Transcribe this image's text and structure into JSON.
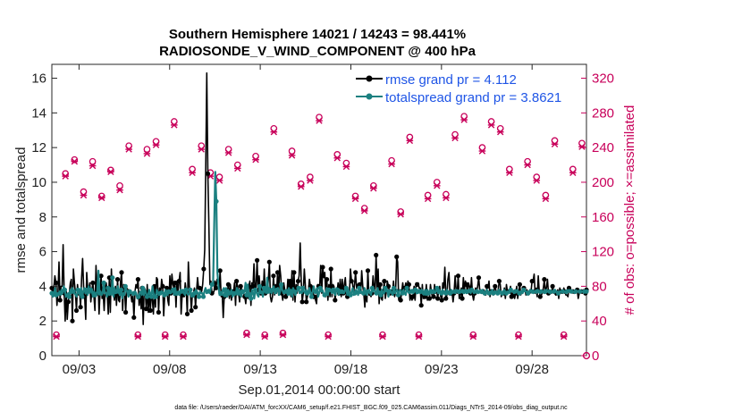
{
  "chart_data": {
    "type": "line",
    "title_line1": "Southern Hemisphere 14021 / 14243 = 98.441%",
    "title_line2": "RADIOSONDE_V_WIND_COMPONENT @ 400 hPa",
    "xlabel": "Sep.01,2014 00:00:00 start",
    "ylabel": "rmse and totalspread",
    "ylabel_right": "# of obs: o=possible; ×=assimilated",
    "footnote": "data file: /Users/raeder/DAI/ATM_forcXX/CAM6_setup/f.e21.FHIST_BGC.f09_025.CAM6assim.011/Diags_NTrS_2014-09/obs_diag_output.nc",
    "xlim": [
      1.5,
      31.0
    ],
    "ylim": [
      0,
      16.8
    ],
    "ylim_right": [
      0,
      336
    ],
    "x_ticks": [
      3,
      8,
      13,
      18,
      23,
      28
    ],
    "x_tick_labels": [
      "09/03",
      "09/08",
      "09/13",
      "09/18",
      "09/23",
      "09/28"
    ],
    "y_ticks": [
      0,
      2,
      4,
      6,
      8,
      10,
      12,
      14,
      16
    ],
    "y_tick_labels": [
      "0",
      "2",
      "4",
      "6",
      "8",
      "10",
      "12",
      "14",
      "16"
    ],
    "y_ticks_right": [
      0,
      40,
      80,
      120,
      160,
      200,
      240,
      280,
      320
    ],
    "y_tick_labels_right": [
      "0",
      "40",
      "80",
      "120",
      "160",
      "200",
      "240",
      "280",
      "320"
    ],
    "colors": {
      "rmse": "#000000",
      "totalspread": "#1b8080",
      "obs": "#c8005a",
      "legend_text": "#1f55e6"
    },
    "series": [
      {
        "name": "rmse grand pr = 4.112",
        "values": [
          3.9,
          3.5,
          4.0,
          4.6,
          4.2,
          2.9,
          3.7,
          5.4,
          3.2,
          4.0,
          4.0,
          6.4,
          3.6,
          2.0,
          3.7,
          2.1,
          3.1,
          3.6,
          4.2,
          4.4,
          2.0,
          5.0,
          4.2,
          3.6,
          2.6,
          4.1,
          3.5,
          3.7,
          2.8,
          4.5,
          5.6,
          3.9,
          3.4,
          2.1,
          4.8,
          3.8,
          3.8,
          4.2,
          3.1,
          3.8,
          4.2,
          3.4,
          2.6,
          5.2,
          3.6,
          4.3,
          2.4,
          3.6,
          4.6,
          3.3,
          3.6,
          2.6,
          3.8,
          4.2,
          3.5,
          2.4,
          4.5,
          2.5,
          5.0,
          3.6,
          3.7,
          3.2,
          4.0,
          2.9,
          4.4,
          3.2,
          3.1,
          4.3,
          4.8,
          2.6,
          4.1,
          3.7,
          2.5,
          3.9,
          3.8,
          3.8,
          3.6,
          3.5,
          3.1,
          3.5,
          2.2,
          3.7,
          4.1,
          3.9,
          4.4,
          2.9,
          3.7,
          2.7,
          3.9,
          1.8,
          3.9,
          3.8,
          2.7,
          4.1,
          2.5,
          3.8,
          2.6,
          3.6,
          3.2,
          2.4,
          4.0,
          2.8,
          4.5,
          4.4,
          2.5,
          3.9,
          3.6,
          4.4,
          4.0,
          2.3,
          3.5,
          3.7,
          3.9,
          3.2,
          2.9,
          4.6,
          3.6,
          4.7,
          4.1,
          3.9,
          4.2,
          2.8,
          4.3,
          3.7,
          4.3,
          4.8,
          2.4,
          3.5,
          3.5,
          3.4,
          4.2,
          3.7,
          2.4,
          5.4,
          4.0,
          3.6,
          2.6,
          3.6,
          3.6,
          3.9,
          2.8,
          3.7,
          4.5,
          3.9,
          3.9,
          3.9,
          3.7,
          4.1,
          5.0,
          6.1,
          11.1,
          16.3,
          10.5,
          7.7,
          4.1,
          4.3,
          3.6,
          3.6,
          3.7,
          4.3,
          3.9,
          4.4,
          4.4,
          3.7,
          4.9,
          3.4,
          3.6,
          2.2,
          3.4,
          3.6,
          3.4,
          3.6,
          4.1,
          3.3,
          4.1,
          3.2,
          3.7,
          3.6,
          4.2,
          2.9,
          4.3,
          4.0,
          3.6,
          3.1,
          4.0,
          3.8,
          3.8,
          3.6,
          3.4,
          3.0,
          3.8,
          3.3,
          4.0,
          4.3,
          2.9,
          4.2,
          4.0,
          5.3,
          3.6,
          4.0,
          5.5,
          3.7,
          4.6,
          3.9,
          3.6,
          4.3,
          3.6,
          5.0,
          3.6,
          3.7,
          3.6,
          4.4,
          5.4,
          3.4,
          3.1,
          3.4,
          4.6,
          3.5,
          4.1,
          3.6,
          4.8,
          3.5,
          5.2,
          4.6,
          3.6,
          3.2,
          4.2,
          3.8,
          3.4,
          3.5,
          4.4,
          3.8,
          4.3,
          3.4,
          4.9,
          3.2,
          4.8,
          3.1,
          4.1,
          3.6,
          4.3,
          4.6,
          6.5,
          4.4,
          3.1,
          3.6,
          5.0,
          4.1,
          3.1,
          3.4,
          3.6,
          4.4,
          4.0,
          3.7,
          4.0,
          3.3,
          3.4,
          3.2,
          3.0,
          4.1,
          4.0,
          4.0,
          5.2,
          3.6,
          5.1,
          4.5,
          4.8,
          3.4,
          4.4,
          3.2,
          4.1,
          3.4,
          5.0,
          3.4,
          4.1,
          4.0,
          3.2,
          3.7,
          3.7,
          4.2,
          3.6,
          4.4,
          3.4,
          4.4,
          3.6,
          4.1,
          4.5,
          3.5,
          3.4,
          3.6,
          3.6,
          5.0,
          4.3,
          4.2,
          3.6,
          4.1,
          4.8,
          3.9,
          4.1,
          3.8,
          4.1,
          3.6,
          4.9,
          4.0,
          3.6,
          2.8,
          3.7,
          3.1,
          4.9,
          3.5,
          3.5,
          3.4,
          3.6,
          4.6,
          4.0,
          3.8,
          5.8,
          3.8,
          5.0,
          3.0,
          4.1,
          3.3,
          3.2,
          3.8,
          4.3,
          3.3,
          3.7,
          4.3,
          4.0,
          3.7,
          3.5,
          3.6,
          3.7,
          4.3,
          3.4,
          3.7,
          5.7,
          5.4,
          3.2,
          3.4,
          3.2,
          3.7,
          4.2,
          3.6,
          3.9,
          4.2,
          3.7,
          4.3,
          4.1,
          3.2,
          3.5,
          3.2,
          3.4,
          4.0,
          3.2,
          4.2,
          4.1,
          4.2,
          3.9,
          3.9,
          2.9,
          4.1,
          3.3,
          3.3,
          3.4,
          4.1,
          3.2,
          3.3,
          3.3,
          4.1,
          3.6,
          3.4,
          3.4,
          4.1,
          3.6,
          3.9,
          3.3,
          3.8,
          4.0,
          3.4,
          3.2,
          4.2,
          3.9,
          5.1,
          3.3,
          3.5,
          4.4,
          4.8,
          3.6,
          3.5,
          3.7,
          3.1,
          3.6,
          4.6,
          3.8,
          3.6,
          4.6,
          3.3,
          3.4,
          3.9,
          3.3,
          4.5,
          3.8,
          4.3,
          4.1,
          3.6,
          4.2,
          4.0,
          3.6,
          4.5,
          3.5,
          3.2,
          3.6,
          3.9,
          3.7,
          4.0,
          4.5,
          3.8,
          3.8,
          3.6,
          3.7,
          3.8,
          3.5,
          3.5,
          4.0,
          3.9,
          4.3,
          3.4,
          3.7,
          3.7,
          3.5,
          3.8,
          4.0,
          3.7,
          3.6,
          3.8,
          4.3,
          4.1,
          3.4,
          3.6,
          3.6,
          3.9,
          3.3,
          4.1,
          3.7,
          3.7,
          3.7,
          4.0,
          3.4,
          3.6,
          3.5,
          3.3,
          3.6,
          4.0,
          3.3,
          3.7,
          4.1,
          3.5,
          3.7,
          3.8,
          3.9,
          3.9,
          3.5,
          3.8,
          3.6,
          3.6,
          3.6,
          3.7,
          4.3,
          4.3,
          4.7,
          3.6,
          3.8,
          3.4,
          4.6,
          3.7,
          3.4,
          3.5,
          3.6,
          3.9,
          4.4,
          3.6,
          3.9,
          4.4,
          3.6,
          3.6,
          3.7,
          3.6,
          4.0,
          3.6,
          3.6,
          3.5,
          3.6,
          3.8,
          3.3,
          3.9,
          3.7,
          3.6,
          3.6,
          3.9,
          3.7,
          3.5,
          3.5,
          3.4,
          3.9,
          3.8,
          3.7,
          3.8,
          3.7,
          3.6,
          3.6,
          3.8,
          3.8,
          3.3,
          3.6,
          3.7,
          3.7,
          3.6,
          3.8,
          3.7,
          3.6,
          3.8
        ]
      },
      {
        "name": "totalspread grand pr = 3.8621",
        "values": [
          3.6,
          3.4,
          3.5,
          3.9,
          3.5,
          3.6,
          3.5,
          3.7,
          3.6,
          3.8,
          3.6,
          4.0,
          3.8,
          3.4,
          3.5,
          3.6,
          3.4,
          3.8,
          3.6,
          3.9,
          3.7,
          3.6,
          3.5,
          3.4,
          3.8,
          3.6,
          3.5,
          3.9,
          3.4,
          3.7,
          3.9,
          3.6,
          3.8,
          3.5,
          4.0,
          3.6,
          3.8,
          3.7,
          3.4,
          3.7,
          3.5,
          3.6,
          3.7,
          4.9,
          3.6,
          3.7,
          3.5,
          3.6,
          4.2,
          3.6,
          3.6,
          3.4,
          3.9,
          3.5,
          3.9,
          3.5,
          4.5,
          3.4,
          3.9,
          3.6,
          3.7,
          4.0,
          3.6,
          3.5,
          3.8,
          3.3,
          3.6,
          3.5,
          4.0,
          3.8,
          3.6,
          3.4,
          3.7,
          3.6,
          3.6,
          3.5,
          3.6,
          3.7,
          3.6,
          3.3,
          3.4,
          3.6,
          3.7,
          3.5,
          3.9,
          3.5,
          3.8,
          3.6,
          3.4,
          3.5,
          3.8,
          3.5,
          3.4,
          4.0,
          3.6,
          3.3,
          3.4,
          3.8,
          3.6,
          3.5,
          3.6,
          3.7,
          3.7,
          3.6,
          3.5,
          3.8,
          3.7,
          3.5,
          3.7,
          3.6,
          3.6,
          3.7,
          3.8,
          3.5,
          3.9,
          3.5,
          3.6,
          3.7,
          3.5,
          3.8,
          3.7,
          3.8,
          3.6,
          3.5,
          3.8,
          3.6,
          3.5,
          3.6,
          3.8,
          3.4,
          3.6,
          3.4,
          3.6,
          3.8,
          3.7,
          3.6,
          3.4,
          3.7,
          3.6,
          3.6,
          3.4,
          3.7,
          3.9,
          3.6,
          3.7,
          3.8,
          3.6,
          3.9,
          4.1,
          4.2,
          7.5,
          10.6,
          8.9,
          4.8,
          4.0,
          3.5,
          3.6,
          3.5,
          3.8,
          3.9,
          3.5,
          3.9,
          3.4,
          3.8,
          3.6,
          3.6,
          3.8,
          3.4,
          3.6,
          3.5,
          3.6,
          3.9,
          3.6,
          3.8,
          3.5,
          3.4,
          3.7,
          3.6,
          3.7,
          4.2,
          3.5,
          4.1,
          3.4,
          3.6,
          3.3,
          3.8,
          3.6,
          3.3,
          3.8,
          3.7,
          3.5,
          3.4,
          4.0,
          3.6,
          3.7,
          3.4,
          3.9,
          3.7,
          3.6,
          4.5,
          3.7,
          3.9,
          3.7,
          3.6,
          3.8,
          4.0,
          3.6,
          3.6,
          3.8,
          3.9,
          3.5,
          3.7,
          4.1,
          3.8,
          3.6,
          3.6,
          3.7,
          3.8,
          3.5,
          3.9,
          3.6,
          3.8,
          3.4,
          3.9,
          3.7,
          3.5,
          3.7,
          3.8,
          3.9,
          3.6,
          3.7,
          3.6,
          3.9,
          3.7,
          3.6,
          3.8,
          3.6,
          3.7,
          3.9,
          3.6,
          3.4,
          3.7,
          4.0,
          3.6,
          3.7,
          3.9,
          3.4,
          3.6,
          3.9,
          3.7,
          3.8,
          3.6,
          3.5,
          3.6,
          3.9,
          3.5,
          3.8,
          3.8,
          3.7,
          3.6,
          3.8,
          3.6,
          3.5,
          3.9,
          3.8,
          3.5,
          3.8,
          3.6,
          3.7,
          3.6,
          3.6,
          3.8,
          3.9,
          3.5,
          3.8,
          3.6,
          3.5,
          3.7,
          3.9,
          3.5,
          3.6,
          3.8,
          3.7,
          3.5,
          3.9,
          3.6,
          3.7,
          3.6,
          3.6,
          3.9,
          3.7,
          3.5,
          3.7,
          3.8,
          3.6,
          3.5,
          3.9,
          3.7,
          3.8,
          3.7,
          3.6,
          3.9,
          3.6,
          3.7,
          3.5,
          3.8,
          3.6,
          3.6,
          3.9,
          3.7,
          3.8,
          3.4,
          3.7,
          3.8,
          3.6,
          3.5,
          3.9,
          3.6,
          3.7,
          3.8,
          3.5,
          3.7,
          3.8,
          3.7,
          3.6,
          3.8,
          3.6,
          3.5,
          3.9,
          3.7,
          3.6,
          3.7,
          3.7,
          3.8,
          3.6,
          3.7,
          3.8,
          3.6,
          3.6,
          3.8,
          3.7,
          3.6,
          3.8,
          3.7,
          3.6,
          3.8,
          3.5,
          3.8,
          3.6,
          3.7,
          3.8,
          3.6,
          3.7,
          3.8,
          3.6,
          3.7,
          3.9,
          3.6,
          3.8,
          3.7,
          3.6,
          3.8,
          3.7,
          3.7,
          3.6,
          3.8,
          3.7,
          3.7,
          3.6,
          3.8,
          3.6,
          3.7,
          3.7,
          3.6,
          3.8,
          3.7,
          3.7,
          3.6,
          3.7,
          3.8,
          3.7,
          3.6,
          3.8,
          3.6,
          3.7,
          3.8,
          3.7,
          3.6,
          3.8,
          3.7,
          3.6,
          3.7,
          3.7,
          3.8,
          3.6,
          3.7,
          3.7,
          3.6,
          3.8,
          3.7,
          3.6,
          3.7,
          3.8,
          3.7,
          3.6,
          3.7,
          3.7,
          3.8,
          3.6,
          3.7,
          3.7,
          3.7,
          3.6,
          3.8,
          3.7,
          3.7,
          3.6,
          3.7,
          3.8,
          3.7,
          3.6,
          3.7,
          3.7,
          3.6,
          3.8,
          3.7,
          3.7,
          3.6,
          3.7,
          3.7,
          3.8,
          3.7,
          3.6,
          3.7,
          3.7,
          3.6,
          3.8,
          3.7,
          3.7,
          3.7,
          3.6,
          3.7,
          3.8,
          3.7,
          3.7,
          3.6,
          3.7,
          3.7,
          3.7,
          3.8,
          3.7,
          3.6,
          3.7,
          3.7,
          3.7,
          3.6,
          3.7,
          3.8,
          3.7,
          3.7,
          3.7,
          3.6,
          3.7,
          3.7,
          3.7,
          3.8,
          3.7,
          3.7,
          3.6,
          3.7,
          3.7,
          3.7,
          3.7,
          3.7,
          3.7,
          3.6,
          3.7,
          3.7,
          3.8,
          3.7,
          3.7,
          3.7,
          3.7,
          3.6,
          3.7,
          3.7,
          3.7,
          3.7,
          3.7,
          3.7,
          3.7,
          3.7,
          3.7,
          3.7,
          3.7
        ]
      }
    ],
    "rmse_x": [],
    "obs": {
      "times": [
        1.75,
        2.25,
        2.75,
        3.25,
        3.75,
        4.25,
        4.75,
        5.25,
        5.75,
        6.25,
        6.75,
        7.25,
        7.75,
        8.25,
        8.75,
        9.25,
        9.75,
        10.25,
        10.75,
        11.25,
        11.75,
        12.25,
        12.75,
        13.25,
        13.75,
        14.25,
        14.75,
        15.25,
        15.75,
        16.25,
        16.75,
        17.25,
        17.75,
        18.25,
        18.75,
        19.25,
        19.75,
        20.25,
        20.75,
        21.25,
        21.75,
        22.25,
        22.75,
        23.25,
        23.75,
        24.25,
        24.75,
        25.25,
        25.75,
        26.25,
        26.75,
        27.25,
        27.75,
        28.25,
        28.75,
        29.25,
        29.75,
        30.25,
        30.75
      ],
      "possible": [
        24,
        210,
        226,
        189,
        224,
        184,
        214,
        196,
        242,
        24,
        238,
        247,
        24,
        270,
        24,
        215,
        242,
        211,
        206,
        238,
        220,
        26,
        230,
        24,
        262,
        26,
        236,
        198,
        206,
        275,
        24,
        232,
        222,
        184,
        170,
        196,
        24,
        225,
        166,
        252,
        24,
        185,
        200,
        186,
        255,
        276,
        24,
        240,
        270,
        262,
        215,
        24,
        224,
        206,
        185,
        248,
        24,
        215,
        245
      ],
      "assimilated": [
        22,
        207,
        224,
        185,
        219,
        182,
        212,
        191,
        238,
        22,
        233,
        243,
        22,
        266,
        22,
        211,
        238,
        207,
        202,
        234,
        216,
        24,
        226,
        22,
        258,
        24,
        231,
        195,
        202,
        271,
        22,
        228,
        218,
        181,
        167,
        193,
        22,
        221,
        163,
        248,
        22,
        181,
        196,
        182,
        251,
        272,
        22,
        236,
        266,
        258,
        211,
        22,
        220,
        202,
        181,
        244,
        22,
        211,
        241
      ]
    }
  }
}
